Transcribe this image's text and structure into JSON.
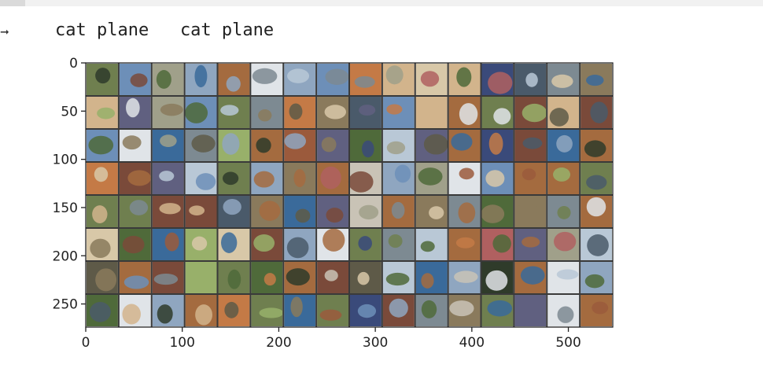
{
  "output": {
    "prompt_icon": "arrow-right-icon",
    "printed_labels": "cat plane   cat plane"
  },
  "figure": {
    "type": "image-grid",
    "description_grid": {
      "rows": 8,
      "cols": 16
    },
    "x_ticks": [
      "0",
      "100",
      "200",
      "300",
      "400",
      "500"
    ],
    "x_tick_values": [
      0,
      100,
      200,
      300,
      400,
      500
    ],
    "y_ticks": [
      "0",
      "50",
      "100",
      "150",
      "200",
      "250"
    ],
    "y_tick_values": [
      0,
      50,
      100,
      150,
      200,
      250
    ],
    "x_range": [
      0,
      546
    ],
    "y_range": [
      0,
      274
    ],
    "tile_palette": [
      "#8a7a5c",
      "#6d8fb8",
      "#a46b3f",
      "#4f6a3a",
      "#c9c3b6",
      "#7d8a92",
      "#3a4a7a",
      "#9b5a3c",
      "#b9c8d6",
      "#5e5a48",
      "#d2b48c",
      "#6f7f4f",
      "#2f3b2a",
      "#8fa6c0",
      "#c47a46",
      "#a0a08a",
      "#e0e4e8",
      "#4a5a6a",
      "#7a4a3a",
      "#98b06a",
      "#b06060",
      "#606080",
      "#d8c8a8",
      "#3a6a9a"
    ]
  }
}
